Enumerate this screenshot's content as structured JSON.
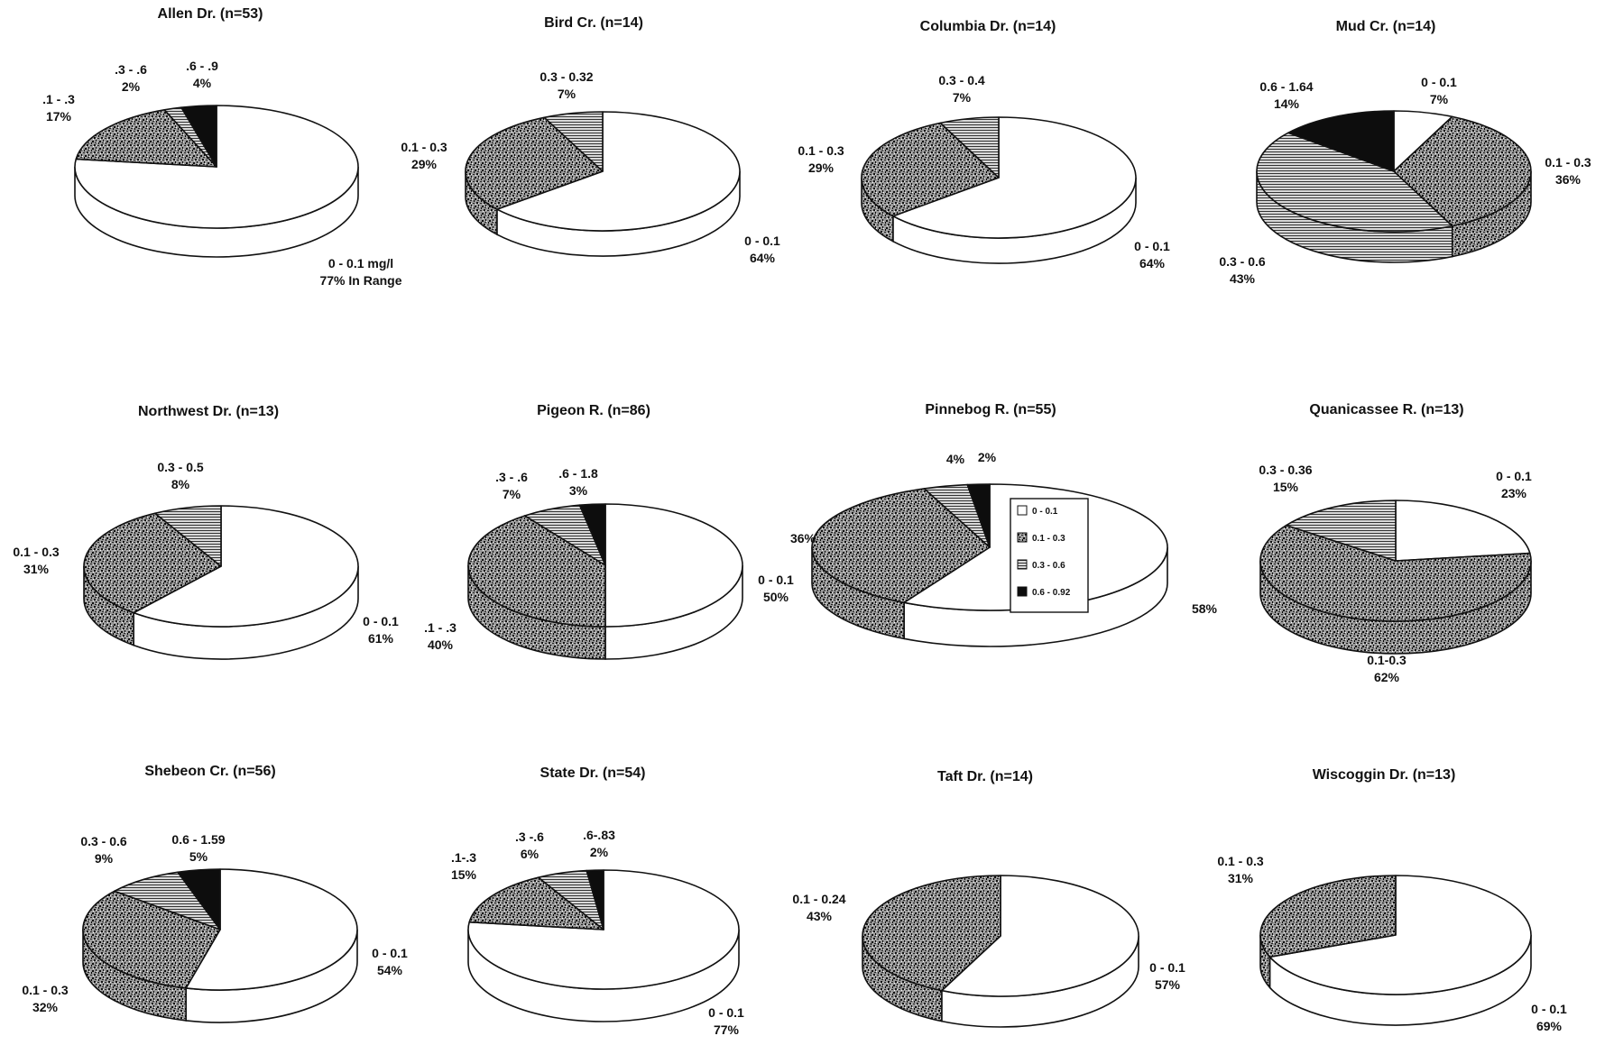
{
  "colors": {
    "background": "#ffffff",
    "outline": "#111111",
    "slice_white": "#ffffff",
    "slice_speckle": "#8a8a8a",
    "slice_hatched": "#b4b4b4",
    "slice_black": "#0d0d0d"
  },
  "chart_data": [
    {
      "type": "pie",
      "title": "Allen Dr. (n=53)",
      "slices": [
        {
          "fill": "white",
          "value": 77,
          "label1": "0 - 0.1 mg/l",
          "label2": "77% In Range"
        },
        {
          "fill": "speckle",
          "value": 17,
          "label1": ".1 - .3",
          "label2": "17%"
        },
        {
          "fill": "hatched",
          "value": 2,
          "label1": ".3 - .6",
          "label2": "2%"
        },
        {
          "fill": "black",
          "value": 4,
          "label1": ".6 - .9",
          "label2": "4%"
        }
      ]
    },
    {
      "type": "pie",
      "title": "Bird Cr. (n=14)",
      "slices": [
        {
          "fill": "white",
          "value": 64,
          "label1": "0 - 0.1",
          "label2": "64%"
        },
        {
          "fill": "speckle",
          "value": 29,
          "label1": "0.1 - 0.3",
          "label2": "29%"
        },
        {
          "fill": "hatched",
          "value": 7,
          "label1": "0.3 - 0.32",
          "label2": "7%"
        }
      ]
    },
    {
      "type": "pie",
      "title": "Columbia Dr. (n=14)",
      "slices": [
        {
          "fill": "white",
          "value": 64,
          "label1": "0 - 0.1",
          "label2": "64%"
        },
        {
          "fill": "speckle",
          "value": 29,
          "label1": "0.1 - 0.3",
          "label2": "29%"
        },
        {
          "fill": "hatched",
          "value": 7,
          "label1": "0.3 - 0.4",
          "label2": "7%"
        }
      ]
    },
    {
      "type": "pie",
      "title": "Mud Cr. (n=14)",
      "slices": [
        {
          "fill": "white",
          "value": 7,
          "label1": "0 - 0.1",
          "label2": "7%"
        },
        {
          "fill": "speckle",
          "value": 36,
          "label1": "0.1 - 0.3",
          "label2": "36%"
        },
        {
          "fill": "hatched",
          "value": 43,
          "label1": "0.3 - 0.6",
          "label2": "43%"
        },
        {
          "fill": "black",
          "value": 14,
          "label1": "0.6 - 1.64",
          "label2": "14%"
        }
      ]
    },
    {
      "type": "pie",
      "title": "Northwest Dr. (n=13)",
      "slices": [
        {
          "fill": "white",
          "value": 61,
          "label1": "0 - 0.1",
          "label2": "61%"
        },
        {
          "fill": "speckle",
          "value": 31,
          "label1": "0.1 - 0.3",
          "label2": "31%"
        },
        {
          "fill": "hatched",
          "value": 8,
          "label1": "0.3 - 0.5",
          "label2": "8%"
        }
      ]
    },
    {
      "type": "pie",
      "title": "Pigeon R. (n=86)",
      "slices": [
        {
          "fill": "white",
          "value": 50,
          "label1": "0 - 0.1",
          "label2": "50%"
        },
        {
          "fill": "speckle",
          "value": 40,
          "label1": ".1 - .3",
          "label2": "40%"
        },
        {
          "fill": "hatched",
          "value": 7,
          "label1": ".3 - .6",
          "label2": "7%"
        },
        {
          "fill": "black",
          "value": 3,
          "label1": ".6 - 1.8",
          "label2": "3%"
        }
      ]
    },
    {
      "type": "pie",
      "title": "Pinnebog R. (n=55)",
      "slices": [
        {
          "fill": "white",
          "value": 58,
          "label1": "",
          "label2": "58%"
        },
        {
          "fill": "speckle",
          "value": 36,
          "label1": "",
          "label2": "36%"
        },
        {
          "fill": "hatched",
          "value": 4,
          "label1": "",
          "label2": "4%"
        },
        {
          "fill": "black",
          "value": 2,
          "label1": "",
          "label2": "2%"
        }
      ],
      "legend": [
        {
          "fill": "white",
          "label": "0 - 0.1"
        },
        {
          "fill": "speckle",
          "label": "0.1 - 0.3"
        },
        {
          "fill": "hatched",
          "label": "0.3 - 0.6"
        },
        {
          "fill": "black",
          "label": "0.6 - 0.92"
        }
      ]
    },
    {
      "type": "pie",
      "title": "Quanicassee R. (n=13)",
      "slices": [
        {
          "fill": "white",
          "value": 23,
          "label1": "0 - 0.1",
          "label2": "23%"
        },
        {
          "fill": "speckle",
          "value": 62,
          "label1": "0.1-0.3",
          "label2": "62%"
        },
        {
          "fill": "hatched",
          "value": 15,
          "label1": "0.3 - 0.36",
          "label2": "15%"
        }
      ]
    },
    {
      "type": "pie",
      "title": "Shebeon Cr. (n=56)",
      "slices": [
        {
          "fill": "white",
          "value": 54,
          "label1": "0 - 0.1",
          "label2": "54%"
        },
        {
          "fill": "speckle",
          "value": 32,
          "label1": "0.1 - 0.3",
          "label2": "32%"
        },
        {
          "fill": "hatched",
          "value": 9,
          "label1": "0.3 - 0.6",
          "label2": "9%"
        },
        {
          "fill": "black",
          "value": 5,
          "label1": "0.6 - 1.59",
          "label2": "5%"
        }
      ]
    },
    {
      "type": "pie",
      "title": "State Dr. (n=54)",
      "slices": [
        {
          "fill": "white",
          "value": 77,
          "label1": "0 - 0.1",
          "label2": "77%"
        },
        {
          "fill": "speckle",
          "value": 15,
          "label1": ".1-.3",
          "label2": "15%"
        },
        {
          "fill": "hatched",
          "value": 6,
          "label1": ".3 -.6",
          "label2": "6%"
        },
        {
          "fill": "black",
          "value": 2,
          "label1": ".6-.83",
          "label2": "2%"
        }
      ]
    },
    {
      "type": "pie",
      "title": "Taft Dr. (n=14)",
      "slices": [
        {
          "fill": "white",
          "value": 57,
          "label1": "0 - 0.1",
          "label2": "57%"
        },
        {
          "fill": "speckle",
          "value": 43,
          "label1": "0.1 - 0.24",
          "label2": "43%"
        }
      ]
    },
    {
      "type": "pie",
      "title": "Wiscoggin Dr. (n=13)",
      "slices": [
        {
          "fill": "white",
          "value": 69,
          "label1": "0 - 0.1",
          "label2": "69%"
        },
        {
          "fill": "speckle",
          "value": 31,
          "label1": "0.1 - 0.3",
          "label2": "31%"
        }
      ]
    }
  ]
}
